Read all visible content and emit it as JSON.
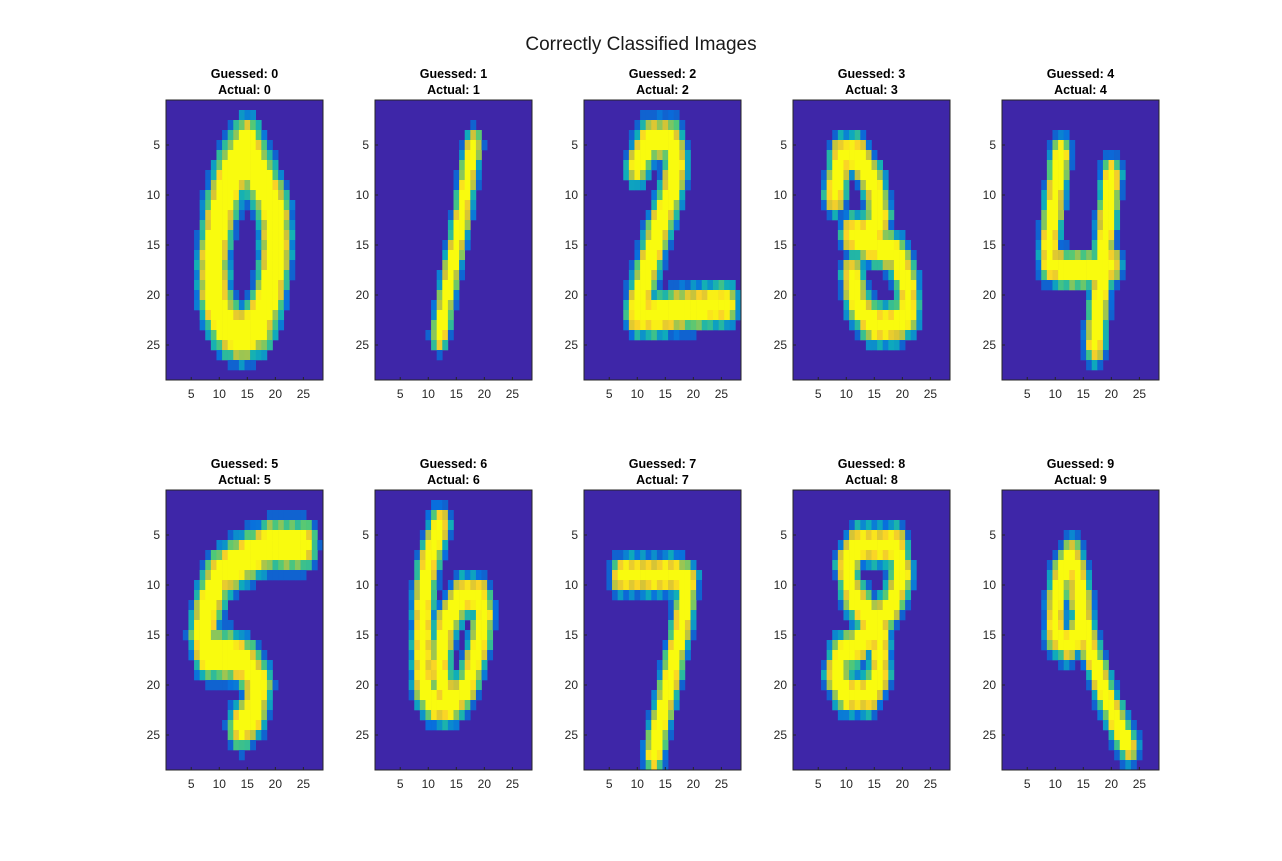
{
  "figure": {
    "title": "Correctly Classified Images"
  },
  "chart_data": [
    {
      "type": "heatmap",
      "title_line1": "Guessed: 0",
      "title_line2": "Actual: 0",
      "x_ticks": [
        "5",
        "10",
        "15",
        "20",
        "25"
      ],
      "y_ticks": [
        "5",
        "10",
        "15",
        "20",
        "25"
      ],
      "xlim": [
        0.5,
        28.5
      ],
      "ylim": [
        0.5,
        28.5
      ],
      "digit_strokes": [
        [
          [
            15,
            5
          ],
          [
            12,
            8
          ],
          [
            10,
            12
          ],
          [
            9,
            16
          ],
          [
            9,
            20
          ],
          [
            11,
            23
          ],
          [
            14,
            24
          ],
          [
            17,
            23
          ],
          [
            19,
            20
          ],
          [
            20,
            16
          ],
          [
            20,
            12
          ],
          [
            18,
            9
          ],
          [
            16,
            7
          ],
          [
            15,
            5
          ]
        ]
      ],
      "stroke_width": 2.7
    },
    {
      "type": "heatmap",
      "title_line1": "Guessed: 1",
      "title_line2": "Actual: 1",
      "x_ticks": [
        "5",
        "10",
        "15",
        "20",
        "25"
      ],
      "y_ticks": [
        "5",
        "10",
        "15",
        "20",
        "25"
      ],
      "xlim": [
        0.5,
        28.5
      ],
      "ylim": [
        0.5,
        28.5
      ],
      "digit_strokes": [
        [
          [
            18,
            5
          ],
          [
            16,
            12
          ],
          [
            14,
            18
          ],
          [
            12,
            24
          ]
        ]
      ],
      "stroke_width": 1.2
    },
    {
      "type": "heatmap",
      "title_line1": "Guessed: 2",
      "title_line2": "Actual: 2",
      "x_ticks": [
        "5",
        "10",
        "15",
        "20",
        "25"
      ],
      "y_ticks": [
        "5",
        "10",
        "15",
        "20",
        "25"
      ],
      "xlim": [
        0.5,
        28.5
      ],
      "ylim": [
        0.5,
        28.5
      ],
      "digit_strokes": [
        [
          [
            10,
            7
          ],
          [
            12,
            4.5
          ],
          [
            16,
            4.5
          ],
          [
            17,
            7
          ],
          [
            16,
            10
          ],
          [
            14,
            13
          ],
          [
            12,
            17
          ],
          [
            10,
            21
          ],
          [
            10,
            22
          ],
          [
            13,
            22
          ],
          [
            18,
            21.5
          ],
          [
            23,
            21
          ],
          [
            26,
            21
          ]
        ]
      ],
      "stroke_width": 1.8
    },
    {
      "type": "heatmap",
      "title_line1": "Guessed: 3",
      "title_line2": "Actual: 3",
      "x_ticks": [
        "5",
        "10",
        "15",
        "20",
        "25"
      ],
      "y_ticks": [
        "5",
        "10",
        "15",
        "20",
        "25"
      ],
      "xlim": [
        0.5,
        28.5
      ],
      "ylim": [
        0.5,
        28.5
      ],
      "digit_strokes": [
        [
          [
            8,
            10
          ],
          [
            9,
            6
          ],
          [
            12,
            6
          ],
          [
            15,
            9
          ],
          [
            16,
            12
          ],
          [
            14,
            14
          ],
          [
            11,
            14
          ],
          [
            15,
            15
          ],
          [
            19,
            16
          ],
          [
            21,
            19
          ],
          [
            21,
            22
          ],
          [
            18,
            23
          ],
          [
            15,
            23
          ],
          [
            12,
            21
          ],
          [
            11,
            18
          ]
        ]
      ],
      "stroke_width": 1.7
    },
    {
      "type": "heatmap",
      "title_line1": "Guessed: 4",
      "title_line2": "Actual: 4",
      "x_ticks": [
        "5",
        "10",
        "15",
        "20",
        "25"
      ],
      "y_ticks": [
        "5",
        "10",
        "15",
        "20",
        "25"
      ],
      "xlim": [
        0.5,
        28.5
      ],
      "ylim": [
        0.5,
        28.5
      ],
      "digit_strokes": [
        [
          [
            11,
            6
          ],
          [
            10,
            10
          ],
          [
            9,
            14
          ],
          [
            9,
            17
          ],
          [
            13,
            17.5
          ],
          [
            17,
            17.5
          ],
          [
            20,
            17
          ]
        ],
        [
          [
            20,
            8
          ],
          [
            19,
            14
          ],
          [
            18,
            20
          ],
          [
            17,
            25
          ]
        ]
      ],
      "stroke_width": 1.5
    },
    {
      "type": "heatmap",
      "title_line1": "Guessed: 5",
      "title_line2": "Actual: 5",
      "x_ticks": [
        "5",
        "10",
        "15",
        "20",
        "25"
      ],
      "y_ticks": [
        "5",
        "10",
        "15",
        "20",
        "25"
      ],
      "xlim": [
        0.5,
        28.5
      ],
      "ylim": [
        0.5,
        28.5
      ],
      "digit_strokes": [
        [
          [
            25,
            6
          ],
          [
            19,
            6
          ],
          [
            14,
            7.5
          ],
          [
            10,
            9
          ],
          [
            8,
            12
          ],
          [
            7,
            15
          ],
          [
            8,
            17
          ],
          [
            12,
            17
          ],
          [
            15,
            18
          ],
          [
            17,
            20
          ],
          [
            16,
            23
          ],
          [
            14,
            24
          ]
        ]
      ],
      "stroke_width": 2.2
    },
    {
      "type": "heatmap",
      "title_line1": "Guessed: 6",
      "title_line2": "Actual: 6",
      "x_ticks": [
        "5",
        "10",
        "15",
        "20",
        "25"
      ],
      "y_ticks": [
        "5",
        "10",
        "15",
        "20",
        "25"
      ],
      "xlim": [
        0.5,
        28.5
      ],
      "ylim": [
        0.5,
        28.5
      ],
      "digit_strokes": [
        [
          [
            12,
            4
          ],
          [
            10,
            8
          ],
          [
            9,
            12
          ],
          [
            9,
            16
          ],
          [
            9,
            20
          ],
          [
            11,
            22
          ],
          [
            14,
            22
          ],
          [
            17,
            20
          ],
          [
            19,
            16
          ],
          [
            20,
            13
          ],
          [
            19,
            11
          ],
          [
            16,
            11
          ],
          [
            13,
            14
          ],
          [
            12,
            18
          ],
          [
            13,
            21
          ]
        ]
      ],
      "stroke_width": 1.6
    },
    {
      "type": "heatmap",
      "title_line1": "Guessed: 7",
      "title_line2": "Actual: 7",
      "x_ticks": [
        "5",
        "10",
        "15",
        "20",
        "25"
      ],
      "y_ticks": [
        "5",
        "10",
        "15",
        "20",
        "25"
      ],
      "xlim": [
        0.5,
        28.5
      ],
      "ylim": [
        0.5,
        28.5
      ],
      "digit_strokes": [
        [
          [
            7,
            9
          ],
          [
            12,
            9
          ],
          [
            17,
            9
          ],
          [
            19,
            9.5
          ],
          [
            18,
            14
          ],
          [
            16,
            19
          ],
          [
            14,
            24
          ],
          [
            13,
            27
          ]
        ]
      ],
      "stroke_width": 1.5
    },
    {
      "type": "heatmap",
      "title_line1": "Guessed: 8",
      "title_line2": "Actual: 8",
      "x_ticks": [
        "5",
        "10",
        "15",
        "20",
        "25"
      ],
      "y_ticks": [
        "5",
        "10",
        "15",
        "20",
        "25"
      ],
      "xlim": [
        0.5,
        28.5
      ],
      "ylim": [
        0.5,
        28.5
      ],
      "digit_strokes": [
        [
          [
            16,
            6
          ],
          [
            12,
            6
          ],
          [
            10,
            8
          ],
          [
            11,
            11
          ],
          [
            14,
            13
          ],
          [
            16,
            15
          ],
          [
            16,
            19
          ],
          [
            14,
            21
          ],
          [
            10,
            21
          ],
          [
            8,
            19
          ],
          [
            9,
            17
          ],
          [
            12,
            16
          ],
          [
            15,
            14
          ],
          [
            18,
            12
          ],
          [
            20,
            9
          ],
          [
            19,
            6
          ],
          [
            16,
            6
          ]
        ]
      ],
      "stroke_width": 1.6
    },
    {
      "type": "heatmap",
      "title_line1": "Guessed: 9",
      "title_line2": "Actual: 9",
      "x_ticks": [
        "5",
        "10",
        "15",
        "20",
        "25"
      ],
      "y_ticks": [
        "5",
        "10",
        "15",
        "20",
        "25"
      ],
      "xlim": [
        0.5,
        28.5
      ],
      "ylim": [
        0.5,
        28.5
      ],
      "digit_strokes": [
        [
          [
            13,
            7
          ],
          [
            11,
            9
          ],
          [
            10,
            12
          ],
          [
            10,
            15
          ],
          [
            12,
            16
          ],
          [
            14,
            15
          ],
          [
            15,
            12
          ],
          [
            14,
            9
          ],
          [
            13,
            7
          ]
        ],
        [
          [
            14,
            11
          ],
          [
            16,
            16
          ],
          [
            19,
            21
          ],
          [
            22,
            25
          ],
          [
            23,
            26
          ]
        ]
      ],
      "stroke_width": 1.4
    }
  ]
}
